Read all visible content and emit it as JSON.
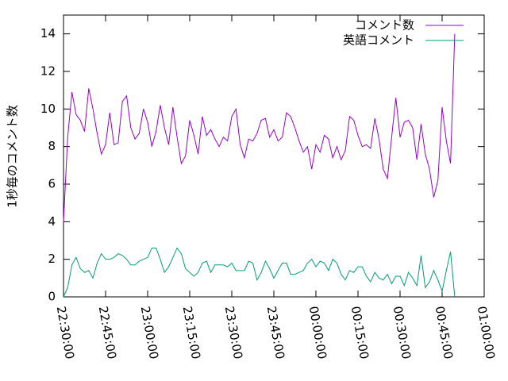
{
  "chart_data": {
    "type": "line",
    "y_label": "1秒毎のコメント数",
    "x": [
      "22:30:00",
      "22:31:30",
      "22:33:00",
      "22:34:30",
      "22:36:00",
      "22:37:30",
      "22:39:00",
      "22:40:30",
      "22:42:00",
      "22:43:30",
      "22:45:00",
      "22:46:30",
      "22:48:00",
      "22:49:30",
      "22:51:00",
      "22:52:30",
      "22:54:00",
      "22:55:30",
      "22:57:00",
      "22:58:30",
      "23:00:00",
      "23:01:30",
      "23:03:00",
      "23:04:30",
      "23:06:00",
      "23:07:30",
      "23:09:00",
      "23:10:30",
      "23:12:00",
      "23:13:30",
      "23:15:00",
      "23:16:30",
      "23:18:00",
      "23:19:30",
      "23:21:00",
      "23:22:30",
      "23:24:00",
      "23:25:30",
      "23:27:00",
      "23:28:30",
      "23:30:00",
      "23:31:30",
      "23:33:00",
      "23:34:30",
      "23:36:00",
      "23:37:30",
      "23:39:00",
      "23:40:30",
      "23:42:00",
      "23:43:30",
      "23:45:00",
      "23:46:30",
      "23:48:00",
      "23:49:30",
      "23:51:00",
      "23:52:30",
      "23:54:00",
      "23:55:30",
      "23:57:00",
      "23:58:30",
      "00:00:00",
      "00:01:30",
      "00:03:00",
      "00:04:30",
      "00:06:00",
      "00:07:30",
      "00:09:00",
      "00:10:30",
      "00:12:00",
      "00:13:30",
      "00:15:00",
      "00:16:30",
      "00:18:00",
      "00:19:30",
      "00:21:00",
      "00:22:30",
      "00:24:00",
      "00:25:30",
      "00:27:00",
      "00:28:30",
      "00:30:00",
      "00:31:30",
      "00:33:00",
      "00:34:30",
      "00:36:00",
      "00:37:30",
      "00:39:00",
      "00:40:30",
      "00:42:00",
      "00:43:30",
      "00:45:00",
      "00:46:30",
      "00:48:00",
      "00:49:30"
    ],
    "series": [
      {
        "name": "コメント数",
        "color": "#9400d3",
        "values": [
          4.0,
          8.5,
          10.9,
          9.7,
          9.4,
          8.8,
          11.1,
          10.0,
          8.7,
          7.6,
          8.1,
          9.8,
          8.1,
          8.2,
          10.4,
          10.7,
          9.0,
          8.4,
          8.7,
          10.0,
          9.3,
          8.0,
          8.8,
          10.2,
          9.0,
          8.1,
          10.1,
          8.5,
          7.1,
          7.5,
          9.4,
          8.6,
          7.6,
          9.6,
          8.6,
          8.9,
          8.4,
          8.0,
          8.5,
          8.3,
          9.6,
          10.0,
          8.1,
          7.4,
          8.4,
          8.3,
          8.7,
          9.4,
          9.5,
          8.5,
          8.9,
          8.3,
          8.5,
          9.8,
          9.6,
          9.0,
          8.3,
          7.7,
          8.0,
          6.8,
          8.1,
          7.7,
          8.6,
          8.4,
          7.4,
          8.0,
          7.3,
          7.8,
          9.6,
          9.4,
          8.6,
          8.0,
          8.1,
          7.9,
          9.5,
          8.4,
          6.8,
          6.3,
          8.5,
          10.6,
          8.5,
          9.3,
          9.4,
          9.0,
          7.3,
          9.2,
          7.6,
          6.8,
          5.3,
          6.2,
          10.1,
          8.3,
          7.1,
          14.0
        ]
      },
      {
        "name": "英語コメント",
        "color": "#009e73",
        "values": [
          0.0,
          0.5,
          1.7,
          2.1,
          1.5,
          1.3,
          1.4,
          1.0,
          1.8,
          2.3,
          2.0,
          2.0,
          2.1,
          2.3,
          2.2,
          2.0,
          1.7,
          1.7,
          1.9,
          2.0,
          2.1,
          2.6,
          2.6,
          2.0,
          1.3,
          1.6,
          2.1,
          2.6,
          2.3,
          1.5,
          1.3,
          1.1,
          1.3,
          1.8,
          1.9,
          1.3,
          1.7,
          1.7,
          1.7,
          1.6,
          1.8,
          1.4,
          1.4,
          1.4,
          1.9,
          1.8,
          0.9,
          1.3,
          1.9,
          1.5,
          1.0,
          1.4,
          1.8,
          1.8,
          1.2,
          1.2,
          1.3,
          1.4,
          1.8,
          2.0,
          1.6,
          1.9,
          1.8,
          1.4,
          2.0,
          1.8,
          1.2,
          0.9,
          1.4,
          1.3,
          1.6,
          1.6,
          1.1,
          0.8,
          1.3,
          1.0,
          0.9,
          1.2,
          0.7,
          1.1,
          1.1,
          0.6,
          1.3,
          1.0,
          0.6,
          2.2,
          0.5,
          0.8,
          1.4,
          0.9,
          0.3,
          1.4,
          2.4,
          0.0
        ]
      }
    ],
    "xlim": [
      "22:30:00",
      "01:00:00"
    ],
    "xticks": [
      "22:30:00",
      "22:45:00",
      "23:00:00",
      "23:15:00",
      "23:30:00",
      "23:45:00",
      "00:00:00",
      "00:15:00",
      "00:30:00",
      "00:45:00",
      "01:00:00"
    ],
    "ylim": [
      0,
      15
    ],
    "yticks": [
      0,
      2,
      4,
      6,
      8,
      10,
      12,
      14
    ],
    "legend": "top-right"
  }
}
